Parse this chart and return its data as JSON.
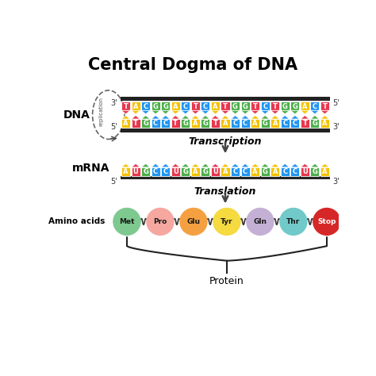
{
  "title": "Central Dogma of DNA",
  "title_fontsize": 15,
  "title_fontweight": "bold",
  "dna_top": [
    "T",
    "A",
    "C",
    "G",
    "G",
    "A",
    "C",
    "T",
    "C",
    "A",
    "T",
    "G",
    "G",
    "T",
    "C",
    "T",
    "G",
    "G",
    "A",
    "C",
    "T"
  ],
  "dna_bot": [
    "A",
    "T",
    "G",
    "C",
    "C",
    "T",
    "G",
    "A",
    "G",
    "T",
    "A",
    "C",
    "C",
    "A",
    "G",
    "A",
    "C",
    "C",
    "T",
    "G",
    "A"
  ],
  "mrna": [
    "A",
    "U",
    "G",
    "C",
    "C",
    "U",
    "G",
    "A",
    "G",
    "U",
    "A",
    "C",
    "C",
    "A",
    "G",
    "A",
    "C",
    "C",
    "U",
    "G",
    "A"
  ],
  "base_colors": {
    "A": "#F5C200",
    "T": "#E8384F",
    "G": "#4DAF4A",
    "C": "#2196F3",
    "U": "#E8384F"
  },
  "amino_acids": [
    "Met",
    "Pro",
    "Glu",
    "Tyr",
    "Gln",
    "Thr",
    "Stop"
  ],
  "amino_colors": [
    "#7DC98F",
    "#F5A7A0",
    "#F5A040",
    "#F5DA40",
    "#C5B0D5",
    "#72C9C9",
    "#D62728"
  ],
  "label_dna": "DNA",
  "label_mrna": "mRNA",
  "label_amino": "Amino acids",
  "label_protein": "Protein",
  "label_replication": "replication",
  "label_transcription": "Transcription",
  "label_translation": "Translation",
  "background": "#FFFFFF"
}
